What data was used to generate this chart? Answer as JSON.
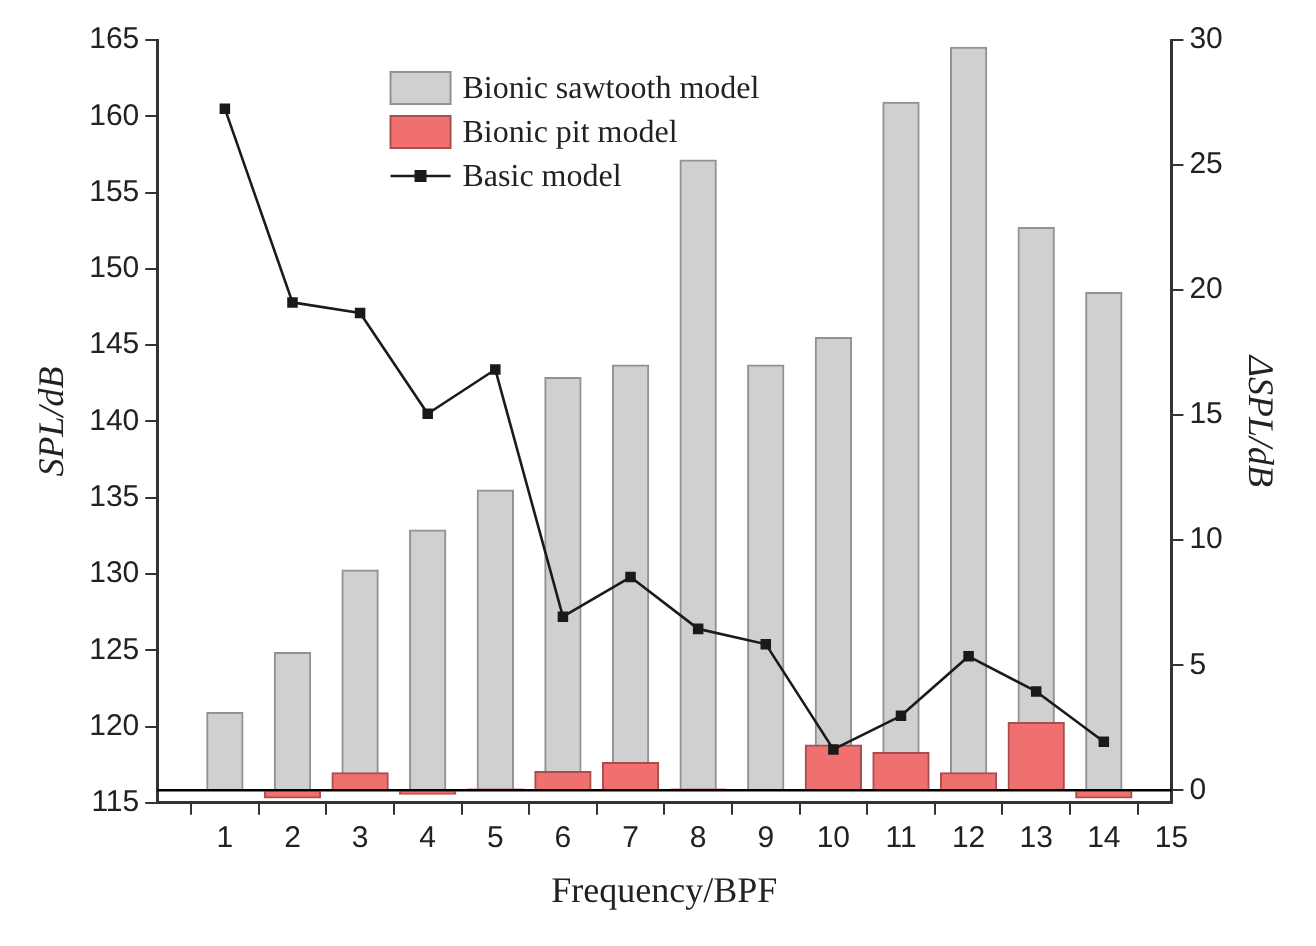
{
  "chart_data": {
    "type": "bar",
    "xlabel": "Frequency/BPF",
    "ylabel": "SPL/dB",
    "y2label": "ΔSPL/dB",
    "x": [
      1,
      2,
      3,
      4,
      5,
      6,
      7,
      8,
      9,
      10,
      11,
      12,
      13,
      14
    ],
    "xlim": [
      0,
      15
    ],
    "xticks": [
      {
        "value": 0,
        "label": null
      },
      1,
      2,
      3,
      4,
      5,
      6,
      7,
      8,
      9,
      10,
      11,
      12,
      13,
      14,
      15
    ],
    "ylim": [
      115,
      165
    ],
    "yticks": [
      115,
      120,
      125,
      130,
      135,
      140,
      145,
      150,
      155,
      160,
      165
    ],
    "y2lim": [
      -0.5,
      30
    ],
    "y2ticks": [
      0,
      5,
      10,
      15,
      20,
      25,
      30
    ],
    "series": [
      {
        "name": "Bionic sawtooth model",
        "axis": "y2",
        "color": "#d0d0d0",
        "values": [
          3.1,
          5.5,
          8.8,
          10.4,
          12.0,
          16.5,
          17.0,
          25.2,
          17.0,
          18.1,
          27.5,
          29.7,
          22.5,
          19.9
        ]
      },
      {
        "name": "Bionic pit model",
        "axis": "y2",
        "color": "#f07070",
        "values": [
          0,
          -0.3,
          0.7,
          -0.15,
          0.05,
          0.75,
          1.1,
          0.05,
          0,
          1.8,
          1.5,
          0.7,
          2.7,
          -0.3
        ]
      },
      {
        "name": "Basic model",
        "type": "line",
        "axis": "y",
        "color": "#1a1a1a",
        "marker": "square",
        "values": [
          160.5,
          147.8,
          147.1,
          140.5,
          143.4,
          127.2,
          129.8,
          126.4,
          125.4,
          118.5,
          120.7,
          124.6,
          122.3,
          119.0
        ]
      }
    ],
    "ref_lines": [
      {
        "axis": "y2",
        "value": 0,
        "color": "#000000"
      }
    ],
    "legend": "top",
    "grid": false
  }
}
